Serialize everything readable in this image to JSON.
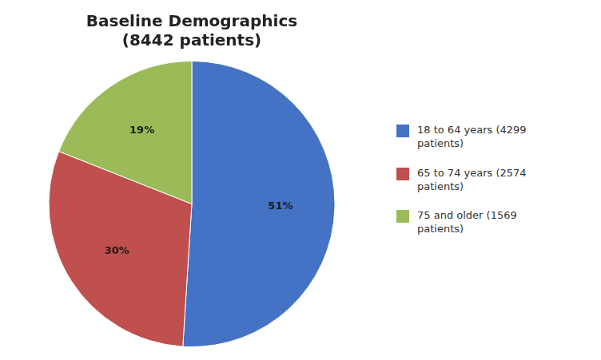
{
  "chart_data": {
    "type": "pie",
    "title": "Baseline Demographics\n(8442 patients)",
    "categories": [
      "18 to 64 years (4299\npatients)",
      "65 to 74 years (2574\npatients)",
      "75 and older (1569\npatients)"
    ],
    "values": [
      51,
      30,
      19
    ],
    "value_labels": [
      "51%",
      "30%",
      "19%"
    ],
    "colors": [
      "#4472C4",
      "#C0504D",
      "#9BBB59"
    ],
    "data_labels": true,
    "legend": "right"
  }
}
